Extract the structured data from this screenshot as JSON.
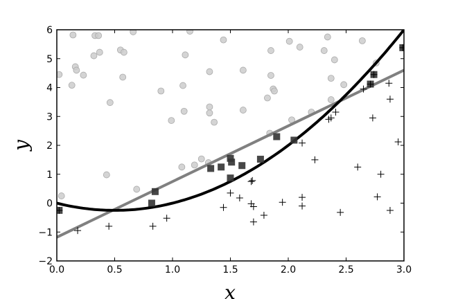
{
  "chart_data": {
    "type": "scatter",
    "title": "",
    "xlabel": "x",
    "ylabel": "y",
    "xlim": [
      0,
      3
    ],
    "ylim": [
      -2,
      6
    ],
    "xticks": [
      "0.0",
      "0.5",
      "1.0",
      "1.5",
      "2.0",
      "2.5",
      "3.0"
    ],
    "yticks": [
      "−2",
      "−1",
      "0",
      "1",
      "2",
      "3",
      "4",
      "5",
      "6"
    ],
    "grid": false,
    "colors": {
      "circles": "#cccccc",
      "squares": "#333333",
      "plus": "#000000",
      "linear_fit": "#808080",
      "quadratic_fit": "#000000"
    },
    "series": [
      {
        "name": "circles",
        "marker": "circle",
        "points": [
          [
            0.02,
            4.45
          ],
          [
            0.14,
            5.82
          ],
          [
            0.13,
            4.08
          ],
          [
            0.16,
            4.72
          ],
          [
            0.17,
            4.6
          ],
          [
            0.23,
            4.43
          ],
          [
            0.32,
            5.1
          ],
          [
            0.33,
            5.8
          ],
          [
            0.36,
            5.8
          ],
          [
            0.37,
            5.22
          ],
          [
            0.46,
            3.48
          ],
          [
            0.55,
            5.3
          ],
          [
            0.58,
            5.22
          ],
          [
            0.57,
            4.36
          ],
          [
            0.66,
            5.93
          ],
          [
            0.9,
            3.88
          ],
          [
            0.99,
            2.86
          ],
          [
            1.09,
            4.07
          ],
          [
            1.11,
            5.13
          ],
          [
            1.1,
            3.18
          ],
          [
            1.15,
            5.95
          ],
          [
            1.32,
            4.55
          ],
          [
            1.32,
            3.33
          ],
          [
            1.32,
            3.12
          ],
          [
            1.36,
            2.8
          ],
          [
            1.44,
            5.65
          ],
          [
            1.61,
            4.6
          ],
          [
            1.61,
            3.22
          ],
          [
            1.82,
            3.64
          ],
          [
            1.85,
            5.28
          ],
          [
            1.85,
            4.42
          ],
          [
            1.87,
            3.95
          ],
          [
            1.88,
            3.88
          ],
          [
            2.01,
            5.6
          ],
          [
            2.1,
            5.4
          ],
          [
            2.31,
            5.28
          ],
          [
            2.34,
            5.75
          ],
          [
            2.37,
            4.32
          ],
          [
            2.4,
            4.96
          ],
          [
            2.48,
            4.1
          ],
          [
            2.64,
            5.62
          ],
          [
            2.76,
            4.85
          ],
          [
            2.37,
            3.58
          ],
          [
            2.2,
            3.15
          ],
          [
            2.03,
            2.88
          ],
          [
            1.84,
            2.42
          ],
          [
            0.04,
            0.25
          ],
          [
            0.43,
            0.98
          ],
          [
            0.69,
            0.48
          ],
          [
            1.08,
            1.25
          ],
          [
            1.19,
            1.32
          ],
          [
            1.25,
            1.53
          ],
          [
            1.31,
            1.4
          ]
        ]
      },
      {
        "name": "squares",
        "marker": "square",
        "points": [
          [
            0.02,
            -0.25
          ],
          [
            0.82,
            0.0
          ],
          [
            0.85,
            0.4
          ],
          [
            1.33,
            1.2
          ],
          [
            1.42,
            1.25
          ],
          [
            1.5,
            1.55
          ],
          [
            1.51,
            1.42
          ],
          [
            1.5,
            0.87
          ],
          [
            1.6,
            1.3
          ],
          [
            1.76,
            1.52
          ],
          [
            1.9,
            2.3
          ],
          [
            2.05,
            2.18
          ],
          [
            2.71,
            4.12
          ],
          [
            2.74,
            4.45
          ],
          [
            2.99,
            5.38
          ]
        ]
      },
      {
        "name": "plus",
        "marker": "plus",
        "points": [
          [
            0.02,
            -0.25
          ],
          [
            0.18,
            -0.95
          ],
          [
            0.45,
            -0.8
          ],
          [
            0.83,
            -0.8
          ],
          [
            0.95,
            -0.52
          ],
          [
            1.44,
            -0.15
          ],
          [
            1.5,
            0.35
          ],
          [
            1.58,
            0.18
          ],
          [
            1.68,
            0.75
          ],
          [
            1.69,
            0.78
          ],
          [
            1.68,
            -0.02
          ],
          [
            1.7,
            -0.12
          ],
          [
            1.7,
            -0.65
          ],
          [
            1.79,
            -0.42
          ],
          [
            1.95,
            0.03
          ],
          [
            2.12,
            0.2
          ],
          [
            2.12,
            -0.1
          ],
          [
            2.12,
            2.08
          ],
          [
            2.23,
            1.5
          ],
          [
            2.35,
            2.9
          ],
          [
            2.37,
            2.95
          ],
          [
            2.41,
            3.15
          ],
          [
            2.45,
            -0.32
          ],
          [
            2.6,
            1.25
          ],
          [
            2.65,
            3.95
          ],
          [
            2.73,
            2.95
          ],
          [
            2.77,
            0.22
          ],
          [
            2.8,
            1.0
          ],
          [
            2.87,
            4.15
          ],
          [
            2.88,
            3.6
          ],
          [
            2.88,
            -0.25
          ],
          [
            2.95,
            2.12
          ],
          [
            2.99,
            5.38
          ],
          [
            2.71,
            4.12
          ],
          [
            2.74,
            4.45
          ]
        ]
      }
    ],
    "fits": [
      {
        "name": "linear_fit",
        "type": "linear",
        "slope": 1.927,
        "intercept": -1.18
      },
      {
        "name": "quadratic_fit",
        "type": "quadratic",
        "a": 1.0,
        "b": -1.0,
        "c": 0.0
      }
    ]
  }
}
